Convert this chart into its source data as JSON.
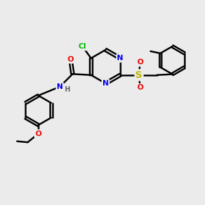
{
  "bg_color": "#ebebeb",
  "bond_color": "#000000",
  "line_width": 1.8,
  "atom_colors": {
    "N": "#0000ee",
    "O": "#ee0000",
    "Cl": "#00bb00",
    "S": "#bbbb00",
    "C": "#000000",
    "H": "#606060"
  },
  "font_size": 8.0,
  "small_font": 7.0
}
